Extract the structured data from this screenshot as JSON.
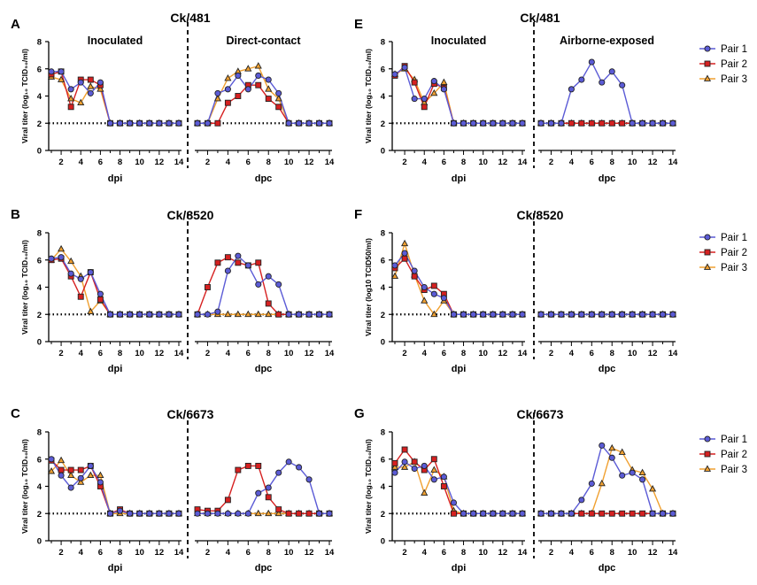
{
  "colors": {
    "pair1": "#5b5bd6",
    "pair2": "#d62020",
    "pair3": "#f0a030"
  },
  "legend": [
    "Pair 1",
    "Pair 2",
    "Pair 3"
  ],
  "common": {
    "ylabel": "Viral titer (log₁₀ TCID₅₀/ml)",
    "ylabel_f": "Viral titer (log10 TCID50/ml)",
    "xlabel_left": "dpi",
    "xlabel_right": "dpc",
    "ylim": [
      0,
      8
    ],
    "yticks": [
      0,
      2,
      4,
      6,
      8
    ],
    "xticks": [
      2,
      4,
      6,
      8,
      10,
      12,
      14
    ],
    "detection_limit": 2,
    "days": [
      1,
      2,
      3,
      4,
      5,
      6,
      7,
      8,
      9,
      10,
      11,
      12,
      13,
      14
    ]
  },
  "chart_data": [
    {
      "type": "line",
      "panel": "A",
      "title": "Ck/481",
      "left_label": "Inoculated",
      "right_label": "Direct-contact",
      "ylabel_key": "ylabel",
      "left": {
        "series": [
          {
            "name": "Pair 1",
            "values": [
              5.8,
              5.8,
              4.5,
              5.0,
              4.2,
              5.0,
              2,
              2,
              2,
              2,
              2,
              2,
              2,
              2
            ]
          },
          {
            "name": "Pair 2",
            "values": [
              5.6,
              5.8,
              3.2,
              5.2,
              5.2,
              4.8,
              2,
              2,
              2,
              2,
              2,
              2,
              2,
              2
            ]
          },
          {
            "name": "Pair 3",
            "values": [
              5.4,
              5.2,
              3.8,
              3.5,
              4.7,
              4.5,
              2,
              2,
              2,
              2,
              2,
              2,
              2,
              2
            ]
          }
        ]
      },
      "right": {
        "series": [
          {
            "name": "Pair 1",
            "values": [
              2,
              2,
              4.2,
              4.5,
              5.5,
              4.5,
              5.5,
              5.2,
              4.2,
              2,
              2,
              2,
              2,
              2
            ]
          },
          {
            "name": "Pair 2",
            "values": [
              2,
              2,
              2,
              3.5,
              4.0,
              4.8,
              4.8,
              3.8,
              3.2,
              2,
              2,
              2,
              2,
              2
            ]
          },
          {
            "name": "Pair 3",
            "values": [
              2,
              2,
              3.8,
              5.3,
              5.8,
              6.0,
              6.2,
              4.5,
              3.8,
              2,
              2,
              2,
              2,
              2
            ]
          }
        ]
      }
    },
    {
      "type": "line",
      "panel": "B",
      "title": "Ck/8520",
      "left_label": "",
      "right_label": "",
      "ylabel_key": "ylabel",
      "left": {
        "series": [
          {
            "name": "Pair 1",
            "values": [
              6.1,
              6.2,
              5.0,
              4.6,
              5.1,
              3.5,
              2,
              2,
              2,
              2,
              2,
              2,
              2,
              2
            ]
          },
          {
            "name": "Pair 2",
            "values": [
              6.0,
              6.1,
              4.8,
              3.3,
              5.1,
              3.1,
              2,
              2,
              2,
              2,
              2,
              2,
              2,
              2
            ]
          },
          {
            "name": "Pair 3",
            "values": [
              6.0,
              6.8,
              5.9,
              4.8,
              2.2,
              3.0,
              2,
              2,
              2,
              2,
              2,
              2,
              2,
              2
            ]
          }
        ]
      },
      "right": {
        "series": [
          {
            "name": "Pair 1",
            "values": [
              2,
              2,
              2.2,
              5.2,
              6.3,
              5.6,
              4.2,
              4.8,
              4.2,
              2,
              2,
              2,
              2,
              2
            ]
          },
          {
            "name": "Pair 2",
            "values": [
              2,
              4.0,
              5.8,
              6.2,
              5.8,
              5.6,
              5.8,
              2.8,
              2,
              2,
              2,
              2,
              2,
              2
            ]
          },
          {
            "name": "Pair 3",
            "values": [
              2,
              2,
              2,
              2,
              2,
              2,
              2,
              2,
              2,
              2,
              2,
              2,
              2,
              2
            ]
          }
        ]
      }
    },
    {
      "type": "line",
      "panel": "C",
      "title": "Ck/6673",
      "left_label": "",
      "right_label": "",
      "ylabel_key": "ylabel",
      "left": {
        "series": [
          {
            "name": "Pair 1",
            "values": [
              6.0,
              4.8,
              3.9,
              4.6,
              5.5,
              4.3,
              2,
              2.2,
              2,
              2,
              2,
              2,
              2,
              2
            ]
          },
          {
            "name": "Pair 2",
            "values": [
              5.9,
              5.2,
              5.2,
              5.2,
              5.5,
              4.0,
              2,
              2.3,
              2,
              2,
              2,
              2,
              2,
              2
            ]
          },
          {
            "name": "Pair 3",
            "values": [
              5.1,
              5.9,
              4.8,
              4.3,
              4.8,
              4.8,
              2,
              2,
              2,
              2,
              2,
              2,
              2,
              2
            ]
          }
        ]
      },
      "right": {
        "series": [
          {
            "name": "Pair 1",
            "values": [
              2,
              2,
              2,
              2,
              2,
              2,
              3.5,
              3.9,
              5.0,
              5.8,
              5.4,
              4.5,
              2,
              2
            ]
          },
          {
            "name": "Pair 2",
            "values": [
              2.3,
              2.2,
              2.2,
              3.0,
              5.2,
              5.5,
              5.5,
              3.2,
              2.3,
              2,
              2,
              2,
              2,
              2
            ]
          },
          {
            "name": "Pair 3",
            "values": [
              2,
              2,
              2,
              2,
              2,
              2,
              2,
              2,
              2,
              2,
              2,
              2,
              2,
              2
            ]
          }
        ]
      }
    },
    {
      "type": "line",
      "panel": "E",
      "title": "Ck/481",
      "left_label": "Inoculated",
      "right_label": "Airborne-exposed",
      "ylabel_key": "ylabel",
      "left": {
        "series": [
          {
            "name": "Pair 1",
            "values": [
              5.6,
              6.1,
              3.8,
              3.8,
              5.1,
              4.5,
              2,
              2,
              2,
              2,
              2,
              2,
              2,
              2
            ]
          },
          {
            "name": "Pair 2",
            "values": [
              5.5,
              6.2,
              5.0,
              3.2,
              4.9,
              4.6,
              2,
              2,
              2,
              2,
              2,
              2,
              2,
              2
            ]
          },
          {
            "name": "Pair 3",
            "values": [
              5.6,
              6.0,
              5.2,
              3.5,
              4.2,
              5.0,
              2,
              2,
              2,
              2,
              2,
              2,
              2,
              2
            ]
          }
        ]
      },
      "right": {
        "series": [
          {
            "name": "Pair 1",
            "values": [
              2,
              2,
              2,
              4.5,
              5.2,
              6.5,
              5.0,
              5.8,
              4.8,
              2,
              2,
              2,
              2,
              2
            ]
          },
          {
            "name": "Pair 2",
            "values": [
              2,
              2,
              2,
              2,
              2,
              2,
              2,
              2,
              2,
              2,
              2,
              2,
              2,
              2
            ]
          },
          {
            "name": "Pair 3",
            "values": [
              2,
              2,
              2,
              2,
              2,
              2,
              2,
              2,
              2,
              2,
              2,
              2,
              2,
              2
            ]
          }
        ]
      }
    },
    {
      "type": "line",
      "panel": "F",
      "title": "Ck/8520",
      "left_label": "",
      "right_label": "",
      "ylabel_key": "ylabel_f",
      "left": {
        "series": [
          {
            "name": "Pair 1",
            "values": [
              5.6,
              6.5,
              5.2,
              4.0,
              3.5,
              3.2,
              2,
              2,
              2,
              2,
              2,
              2,
              2,
              2
            ]
          },
          {
            "name": "Pair 2",
            "values": [
              5.4,
              6.1,
              4.8,
              3.8,
              4.1,
              3.5,
              2,
              2,
              2,
              2,
              2,
              2,
              2,
              2
            ]
          },
          {
            "name": "Pair 3",
            "values": [
              4.8,
              7.2,
              4.9,
              3.0,
              2.0,
              3.0,
              2,
              2,
              2,
              2,
              2,
              2,
              2,
              2
            ]
          }
        ]
      },
      "right": {
        "series": [
          {
            "name": "Pair 1",
            "values": [
              2,
              2,
              2,
              2,
              2,
              2,
              2,
              2,
              2,
              2,
              2,
              2,
              2,
              2
            ]
          },
          {
            "name": "Pair 2",
            "values": [
              2,
              2,
              2,
              2,
              2,
              2,
              2,
              2,
              2,
              2,
              2,
              2,
              2,
              2
            ]
          },
          {
            "name": "Pair 3",
            "values": [
              2,
              2,
              2,
              2,
              2,
              2,
              2,
              2,
              2,
              2,
              2,
              2,
              2,
              2
            ]
          }
        ]
      }
    },
    {
      "type": "line",
      "panel": "G",
      "title": "Ck/6673",
      "left_label": "",
      "right_label": "",
      "ylabel_key": "ylabel",
      "left": {
        "series": [
          {
            "name": "Pair 1",
            "values": [
              5.0,
              5.8,
              5.3,
              5.5,
              4.5,
              4.7,
              2.8,
              2,
              2,
              2,
              2,
              2,
              2,
              2
            ]
          },
          {
            "name": "Pair 2",
            "values": [
              5.7,
              6.7,
              5.8,
              5.2,
              6.0,
              4.0,
              2.0,
              2,
              2,
              2,
              2,
              2,
              2,
              2
            ]
          },
          {
            "name": "Pair 3",
            "values": [
              5.4,
              5.4,
              5.8,
              3.5,
              5.2,
              4.7,
              2.2,
              2,
              2,
              2,
              2,
              2,
              2,
              2
            ]
          }
        ]
      },
      "right": {
        "series": [
          {
            "name": "Pair 1",
            "values": [
              2,
              2,
              2,
              2,
              3.0,
              4.2,
              7.0,
              6.1,
              4.8,
              5.0,
              4.5,
              2,
              2,
              2
            ]
          },
          {
            "name": "Pair 2",
            "values": [
              2,
              2,
              2,
              2,
              2,
              2,
              2,
              2,
              2,
              2,
              2,
              2,
              2,
              2
            ]
          },
          {
            "name": "Pair 3",
            "values": [
              2,
              2,
              2,
              2,
              2,
              2,
              4.2,
              6.8,
              6.5,
              5.2,
              5.0,
              3.8,
              2,
              2
            ]
          }
        ]
      }
    }
  ]
}
